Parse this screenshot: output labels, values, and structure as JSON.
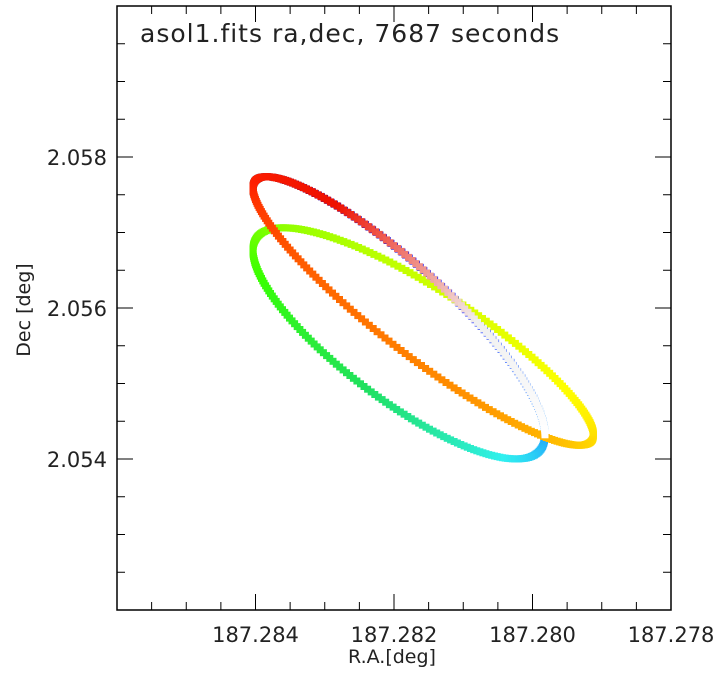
{
  "chart_data": {
    "type": "scatter",
    "title": "asol1.fits ra,dec, 7687 seconds",
    "xlabel": "R.A.[deg]",
    "ylabel": "Dec [deg]",
    "xlim": [
      187.286,
      187.278
    ],
    "ylim": [
      2.052,
      2.06
    ],
    "x_ticks": [
      187.284,
      187.282,
      187.28,
      187.278
    ],
    "x_tick_labels": [
      "187.284",
      "187.282",
      "187.280",
      "187.278"
    ],
    "y_ticks": [
      2.054,
      2.056,
      2.058
    ],
    "y_tick_labels": [
      "2.054",
      "2.056",
      "2.058"
    ],
    "x_minor_step": 0.0005,
    "y_minor_step": 0.0005,
    "grid": false,
    "dither": {
      "description": "Lissajous dither pattern of aspect solution, color-coded by time",
      "center_ra": 187.28175,
      "center_dec": 2.05575,
      "amp_ra_main": 0.00228,
      "amp_dec_main": 0.00165,
      "amp_ra_cross": 0.00035,
      "amp_dec_cross": 0.00035,
      "main_phase_deg": 60,
      "orbits": 2.5,
      "points": 640,
      "color_stops": [
        "#000000",
        "#3a0090",
        "#2a2aff",
        "#1e90ff",
        "#30f0f0",
        "#20e060",
        "#38ff00",
        "#90ff00",
        "#ccff00",
        "#ffff00",
        "#ffd000",
        "#ff9000",
        "#ff6000",
        "#ff2000",
        "#ee1000",
        "#f0f0f0",
        "#ffffff"
      ]
    }
  }
}
